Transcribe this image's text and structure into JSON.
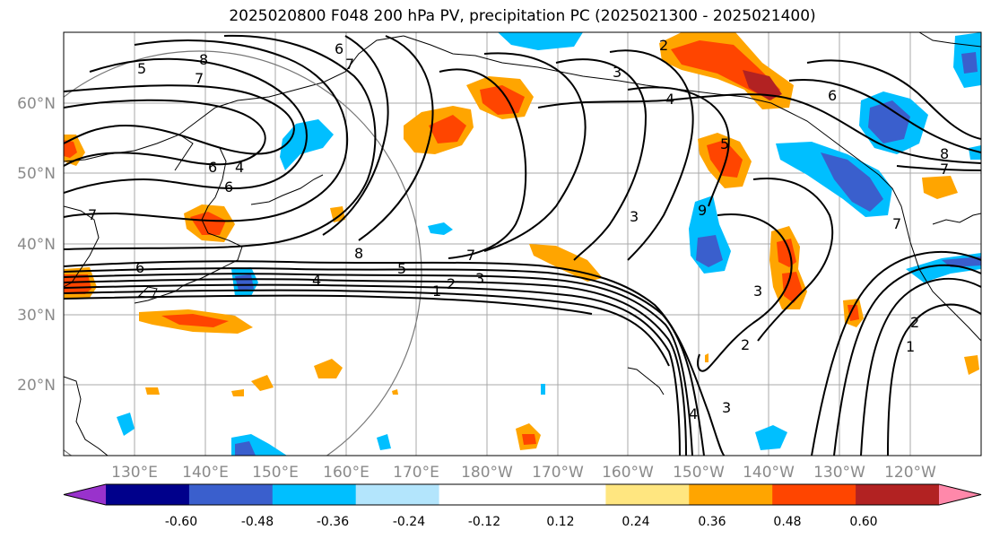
{
  "title": "2025020800 F048 200 hPa PV, precipitation PC (2025021300 - 2025021400)",
  "map": {
    "lat_labels": [
      "60°N",
      "50°N",
      "40°N",
      "30°N",
      "20°N"
    ],
    "lon_labels": [
      "130°E",
      "140°E",
      "150°E",
      "160°E",
      "170°E",
      "180°W",
      "170°W",
      "160°W",
      "150°W",
      "140°W",
      "130°W",
      "120°W"
    ],
    "contour_labels": [
      "5",
      "8",
      "7",
      "6",
      "7",
      "6",
      "6",
      "4",
      "2",
      "3",
      "4",
      "6",
      "5",
      "8",
      "7",
      "7",
      "6",
      "4",
      "5",
      "8",
      "7",
      "3",
      "2",
      "1",
      "3",
      "9",
      "3",
      "2",
      "3",
      "4",
      "1",
      "2",
      "7"
    ]
  },
  "colorbar": {
    "colors": [
      "#9932cc",
      "#00008b",
      "#3a5fcd",
      "#00bfff",
      "#b3e5fc",
      "#ffffff",
      "#ffffff",
      "#ffe680",
      "#ffa500",
      "#ff4500",
      "#b22222",
      "#ff88aa"
    ],
    "tick_labels": [
      "-0.60",
      "-0.48",
      "-0.36",
      "-0.24",
      "-0.12",
      "0.12",
      "0.24",
      "0.36",
      "0.48",
      "0.60"
    ]
  }
}
